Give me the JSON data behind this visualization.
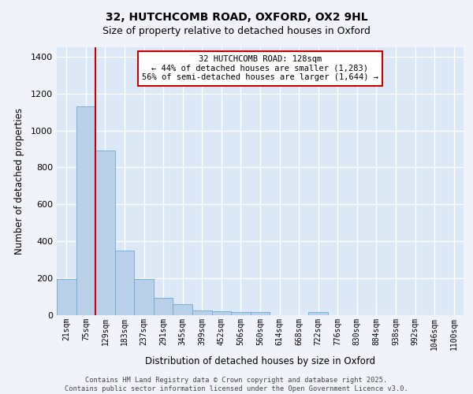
{
  "title1": "32, HUTCHCOMB ROAD, OXFORD, OX2 9HL",
  "title2": "Size of property relative to detached houses in Oxford",
  "xlabel": "Distribution of detached houses by size in Oxford",
  "ylabel": "Number of detached properties",
  "categories": [
    "21sqm",
    "75sqm",
    "129sqm",
    "183sqm",
    "237sqm",
    "291sqm",
    "345sqm",
    "399sqm",
    "452sqm",
    "506sqm",
    "560sqm",
    "614sqm",
    "668sqm",
    "722sqm",
    "776sqm",
    "830sqm",
    "884sqm",
    "938sqm",
    "992sqm",
    "1046sqm",
    "1100sqm"
  ],
  "values": [
    195,
    1130,
    893,
    350,
    195,
    95,
    58,
    25,
    20,
    15,
    15,
    0,
    0,
    15,
    0,
    0,
    0,
    0,
    0,
    0,
    0
  ],
  "bar_color": "#b8d0e8",
  "bar_edge_color": "#6aaad4",
  "background_color": "#dce8f5",
  "grid_color": "#ffffff",
  "vline_color": "#cc0000",
  "vline_pos": 1.5,
  "annotation_text": "32 HUTCHCOMB ROAD: 128sqm\n← 44% of detached houses are smaller (1,283)\n56% of semi-detached houses are larger (1,644) →",
  "annotation_box_facecolor": "#ffffff",
  "annotation_box_edgecolor": "#cc0000",
  "footer": "Contains HM Land Registry data © Crown copyright and database right 2025.\nContains public sector information licensed under the Open Government Licence v3.0.",
  "ylim": [
    0,
    1450
  ],
  "yticks": [
    0,
    200,
    400,
    600,
    800,
    1000,
    1200,
    1400
  ],
  "figsize": [
    6.0,
    5.0
  ],
  "dpi": 100,
  "fig_facecolor": "#f0f4fa"
}
